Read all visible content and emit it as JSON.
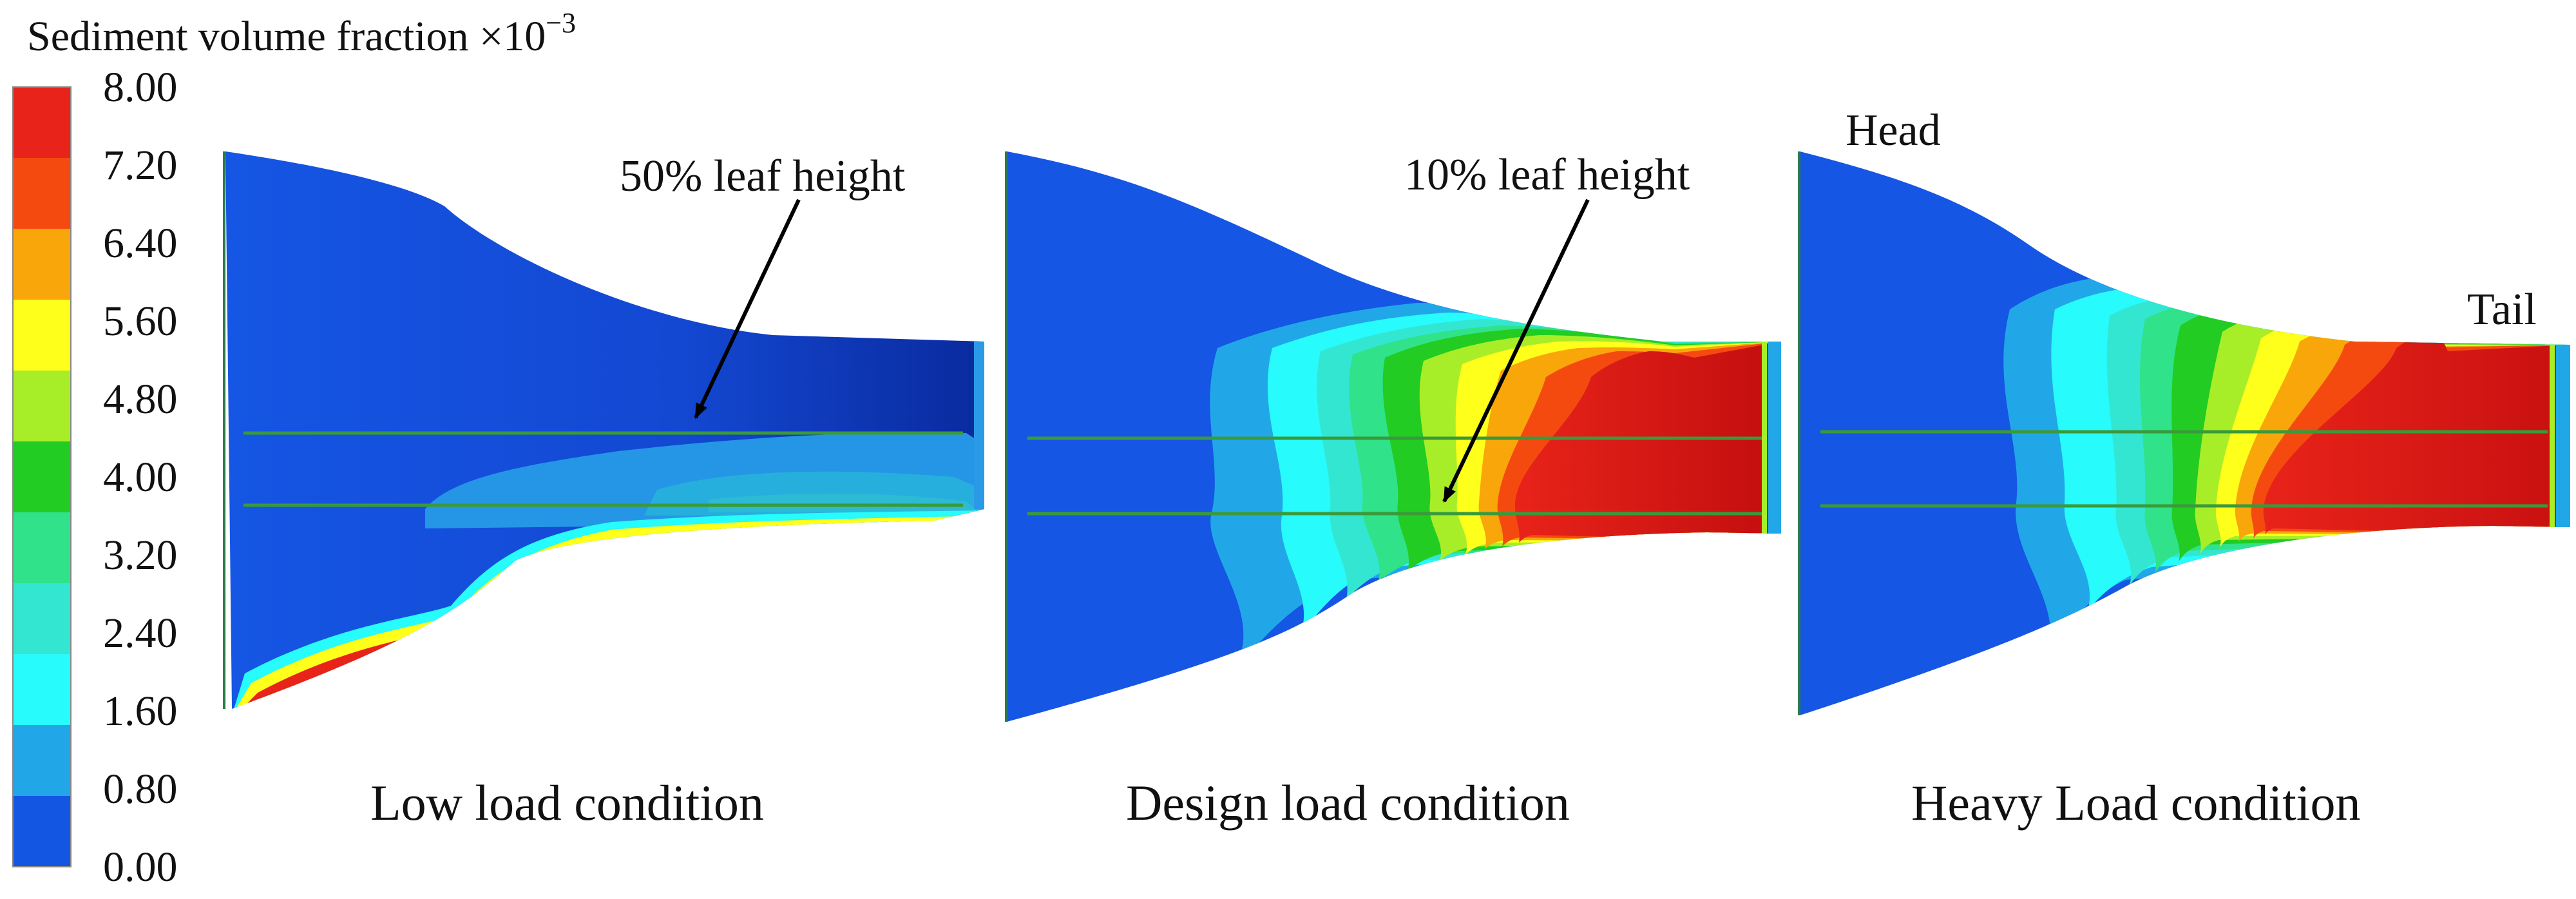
{
  "legend": {
    "title_main": "Sediment volume fraction ×10",
    "title_exp": "−3",
    "ticks": [
      "8.00",
      "7.20",
      "6.40",
      "5.60",
      "4.80",
      "4.00",
      "3.20",
      "2.40",
      "1.60",
      "0.80",
      "0.00"
    ],
    "colors": [
      "#e8231a",
      "#f44a10",
      "#f9a60a",
      "#ffff1c",
      "#a8ee28",
      "#22cc22",
      "#30e28a",
      "#33e6d2",
      "#27fbfb",
      "#21a7e8",
      "#1356e2"
    ]
  },
  "panels": [
    {
      "label": "Low load condition"
    },
    {
      "label": "Design load condition"
    },
    {
      "label": "Heavy Load condition"
    }
  ],
  "annotations": {
    "low_arrow": "50% leaf height",
    "design_arrow": "10% leaf height",
    "head": "Head",
    "tail": "Tail"
  }
}
